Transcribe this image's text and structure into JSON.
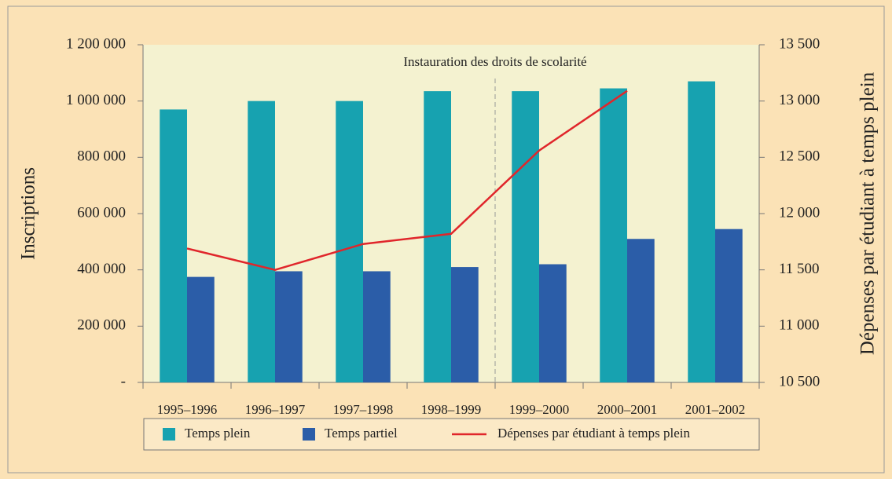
{
  "chart_data": {
    "type": "bar-line",
    "categories": [
      "1995–1996",
      "1996–1997",
      "1997–1998",
      "1998–1999",
      "1999–2000",
      "2000–2001",
      "2001–2002"
    ],
    "series": [
      {
        "name": "Temps plein",
        "color": "#17a2b0",
        "values": [
          970000,
          1000000,
          1000000,
          1035000,
          1035000,
          1045000,
          1070000
        ]
      },
      {
        "name": "Temps partiel",
        "color": "#2b5da8",
        "values": [
          375000,
          395000,
          395000,
          410000,
          420000,
          510000,
          545000
        ]
      },
      {
        "name": "Dépenses par étudiant à temps plein",
        "color": "#e0262b",
        "axis": "y2",
        "values": [
          11690,
          11500,
          11730,
          11820,
          12560,
          13090,
          null
        ]
      }
    ],
    "ylabel": "Inscriptions",
    "y2label": "Dépenses par étudiant à temps plein",
    "annotation": "Instauration des droits de scolarité",
    "ylim": [
      0,
      1200000
    ],
    "yticks": [
      {
        "value": 0,
        "label": "-"
      },
      {
        "value": 200000,
        "label": "200 000"
      },
      {
        "value": 400000,
        "label": "400 000"
      },
      {
        "value": 600000,
        "label": "600 000"
      },
      {
        "value": 800000,
        "label": "800 000"
      },
      {
        "value": 1000000,
        "label": "1 000 000"
      },
      {
        "value": 1200000,
        "label": "1 200 000"
      }
    ],
    "y2lim": [
      10500,
      13500
    ],
    "y2ticks": [
      {
        "value": 10500,
        "label": "10 500"
      },
      {
        "value": 11000,
        "label": "11 000"
      },
      {
        "value": 11500,
        "label": "11 500"
      },
      {
        "value": 12000,
        "label": "12 000"
      },
      {
        "value": 12500,
        "label": "12 500"
      },
      {
        "value": 13000,
        "label": "13 000"
      },
      {
        "value": 13500,
        "label": "13 500"
      }
    ],
    "legend": "bottom"
  }
}
